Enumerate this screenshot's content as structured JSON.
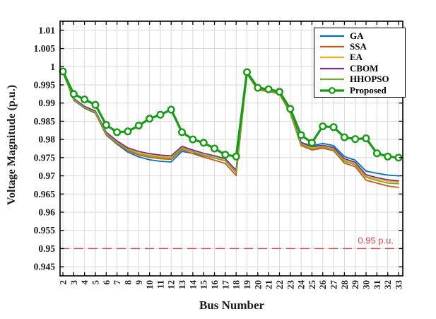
{
  "figure": {
    "xlabel": "Bus Number",
    "ylabel": "Voltage Magnitude (p.u.)"
  },
  "chart_data": {
    "type": "line",
    "title": "",
    "xlabel": "Bus Number",
    "ylabel": "Voltage Magnitude (p.u.)",
    "x": [
      2,
      3,
      4,
      5,
      6,
      7,
      8,
      9,
      10,
      11,
      12,
      13,
      14,
      15,
      16,
      17,
      18,
      19,
      20,
      21,
      22,
      23,
      24,
      25,
      26,
      27,
      28,
      29,
      30,
      31,
      32,
      33
    ],
    "ylim": [
      0.9425,
      1.0125
    ],
    "yticks": [
      0.945,
      0.95,
      0.955,
      0.96,
      0.965,
      0.97,
      0.975,
      0.98,
      0.985,
      0.99,
      0.995,
      1.0,
      1.005,
      1.01
    ],
    "ytick_labels": [
      "0.945",
      "0.95",
      "0.955",
      "0.96",
      "0.965",
      "0.97",
      "0.975",
      "0.98",
      "0.985",
      "0.99",
      "0.995",
      "1",
      "1.005",
      "1.01"
    ],
    "grid": true,
    "legend_position": "top-right",
    "axis_color": "#000000",
    "grid_color": "#d9d9d9",
    "series": [
      {
        "name": "GA",
        "color": "#0072BD",
        "line_width": 1.8,
        "marker": "none",
        "values": [
          0.9985,
          0.9908,
          0.9886,
          0.9872,
          0.9812,
          0.9787,
          0.9765,
          0.9752,
          0.9744,
          0.974,
          0.9738,
          0.9767,
          0.9762,
          0.9755,
          0.9749,
          0.9742,
          0.9716,
          0.9982,
          0.9939,
          0.9935,
          0.9928,
          0.9877,
          0.9792,
          0.9782,
          0.9789,
          0.9783,
          0.9753,
          0.9743,
          0.9713,
          0.9707,
          0.9702,
          0.97
        ]
      },
      {
        "name": "SSA",
        "color": "#D95319",
        "line_width": 1.8,
        "marker": "none",
        "values": [
          0.9985,
          0.9909,
          0.9887,
          0.9873,
          0.9813,
          0.9789,
          0.9769,
          0.9757,
          0.9751,
          0.9747,
          0.9745,
          0.9772,
          0.9761,
          0.9751,
          0.9743,
          0.9734,
          0.9701,
          0.998,
          0.9936,
          0.9932,
          0.9925,
          0.9872,
          0.9783,
          0.9771,
          0.9776,
          0.9769,
          0.9735,
          0.9725,
          0.9688,
          0.968,
          0.9672,
          0.9668
        ]
      },
      {
        "name": "EA",
        "color": "#EDB120",
        "line_width": 1.8,
        "marker": "none",
        "values": [
          0.9986,
          0.9911,
          0.9889,
          0.9876,
          0.9817,
          0.9793,
          0.9774,
          0.9763,
          0.9757,
          0.9753,
          0.9751,
          0.9778,
          0.9768,
          0.9758,
          0.9751,
          0.9743,
          0.9711,
          0.9982,
          0.9939,
          0.9935,
          0.9928,
          0.9876,
          0.9788,
          0.9777,
          0.9781,
          0.9775,
          0.9743,
          0.9733,
          0.9699,
          0.9691,
          0.9685,
          0.9682
        ]
      },
      {
        "name": "CBOM",
        "color": "#7E2F8E",
        "line_width": 1.8,
        "marker": "none",
        "values": [
          0.9986,
          0.9913,
          0.9891,
          0.9878,
          0.982,
          0.9796,
          0.9777,
          0.9767,
          0.9761,
          0.9757,
          0.9755,
          0.9781,
          0.9771,
          0.9762,
          0.9755,
          0.9747,
          0.9715,
          0.9983,
          0.994,
          0.9936,
          0.9929,
          0.9878,
          0.9791,
          0.978,
          0.9784,
          0.9778,
          0.9747,
          0.9737,
          0.9703,
          0.9695,
          0.9689,
          0.9686
        ]
      },
      {
        "name": "HHOPSO",
        "color": "#77AC30",
        "line_width": 1.8,
        "marker": "none",
        "values": [
          0.9986,
          0.991,
          0.9888,
          0.9875,
          0.9815,
          0.9791,
          0.9772,
          0.976,
          0.9754,
          0.975,
          0.9748,
          0.9776,
          0.9766,
          0.9756,
          0.9749,
          0.9741,
          0.9708,
          0.9981,
          0.9938,
          0.9934,
          0.9927,
          0.9875,
          0.9786,
          0.9774,
          0.9779,
          0.9772,
          0.974,
          0.973,
          0.9696,
          0.9687,
          0.968,
          0.9678
        ]
      },
      {
        "name": "Proposed",
        "color": "#149C14",
        "line_width": 3.2,
        "marker": "circle",
        "values": [
          0.9987,
          0.9925,
          0.991,
          0.9895,
          0.984,
          0.982,
          0.9822,
          0.9838,
          0.9857,
          0.9868,
          0.9882,
          0.982,
          0.98,
          0.9791,
          0.9775,
          0.9758,
          0.9753,
          0.9985,
          0.9942,
          0.9938,
          0.9931,
          0.9884,
          0.9812,
          0.9791,
          0.9836,
          0.9834,
          0.9806,
          0.9801,
          0.9803,
          0.9762,
          0.9753,
          0.975
        ]
      }
    ],
    "reference_line": {
      "value": 0.95,
      "label": "0.95 p.u.",
      "color": "#E04848",
      "style": "dashed"
    }
  }
}
